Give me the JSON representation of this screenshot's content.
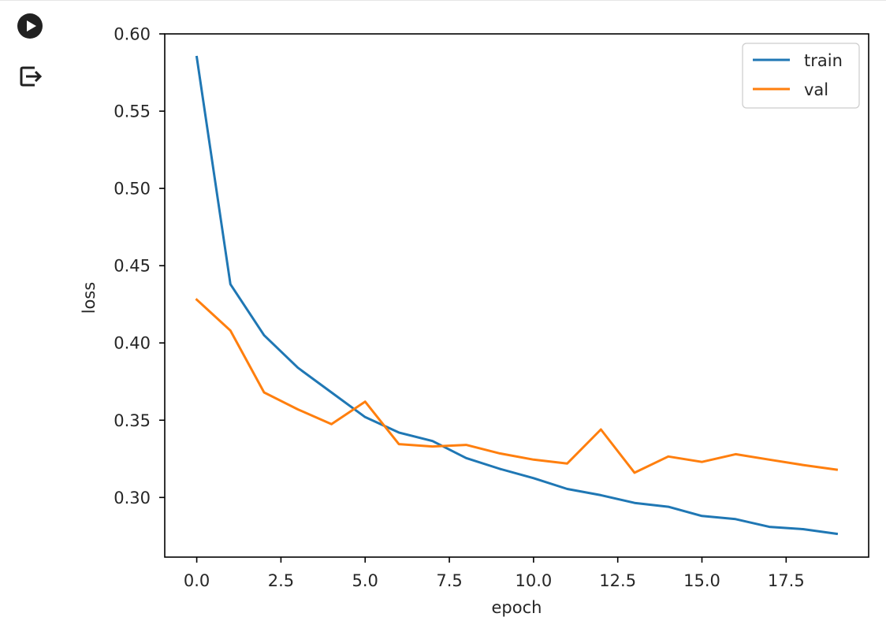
{
  "toolbar": {
    "run_icon": "play-circle-icon",
    "output_icon": "output-exit-icon"
  },
  "chart_data": {
    "type": "line",
    "title": "",
    "xlabel": "epoch",
    "ylabel": "loss",
    "xlim": [
      -0.95,
      19.95
    ],
    "ylim": [
      0.2614,
      0.6
    ],
    "xticks": [
      "0.0",
      "2.5",
      "5.0",
      "7.5",
      "10.0",
      "12.5",
      "15.0",
      "17.5"
    ],
    "xtick_values": [
      0,
      2.5,
      5,
      7.5,
      10,
      12.5,
      15,
      17.5
    ],
    "yticks": [
      "0.30",
      "0.35",
      "0.40",
      "0.45",
      "0.50",
      "0.55",
      "0.60"
    ],
    "ytick_values": [
      0.3,
      0.35,
      0.4,
      0.45,
      0.5,
      0.55,
      0.6
    ],
    "grid": false,
    "legend_position": "top-right",
    "x": [
      0,
      1,
      2,
      3,
      4,
      5,
      6,
      7,
      8,
      9,
      10,
      11,
      12,
      13,
      14,
      15,
      16,
      17,
      18,
      19
    ],
    "series": [
      {
        "name": "train",
        "color": "#1f77b4",
        "values": [
          0.585,
          0.438,
          0.405,
          0.384,
          0.368,
          0.352,
          0.342,
          0.3365,
          0.3255,
          0.3185,
          0.3125,
          0.3055,
          0.3015,
          0.2965,
          0.294,
          0.288,
          0.286,
          0.281,
          0.2795,
          0.2765
        ]
      },
      {
        "name": "val",
        "color": "#ff7f0e",
        "values": [
          0.428,
          0.408,
          0.368,
          0.357,
          0.3475,
          0.362,
          0.3345,
          0.333,
          0.334,
          0.3285,
          0.3245,
          0.322,
          0.344,
          0.316,
          0.3265,
          0.323,
          0.328,
          0.3245,
          0.321,
          0.318
        ]
      }
    ]
  }
}
